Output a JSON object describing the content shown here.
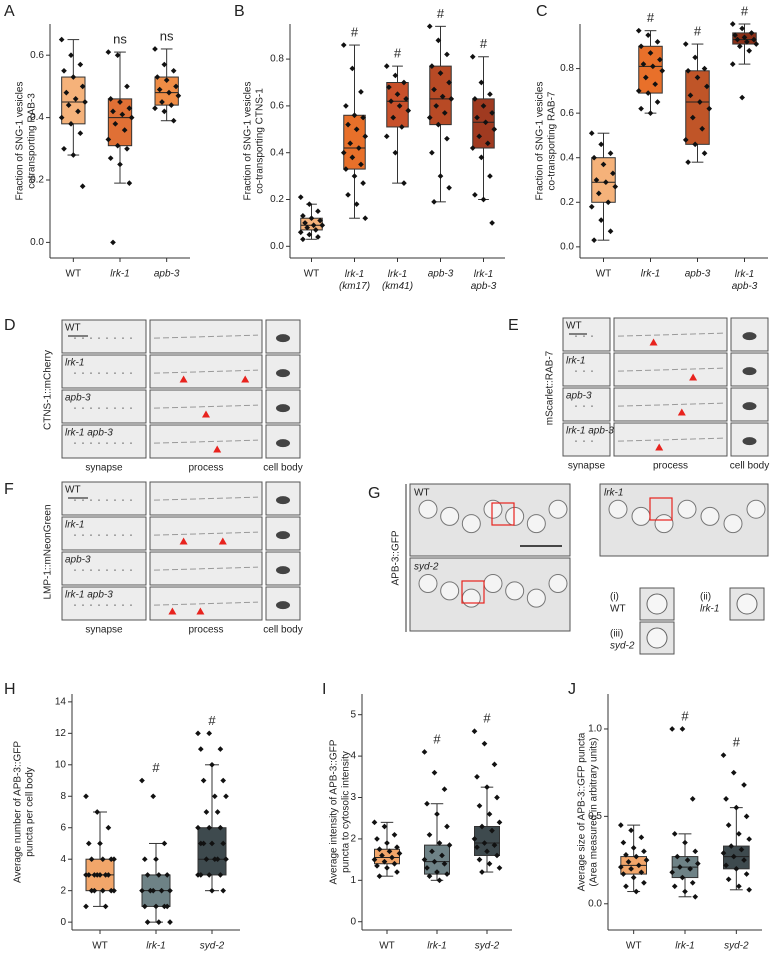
{
  "chart_data": [
    {
      "type": "box",
      "label": "A",
      "ylabel": [
        "Fraction of SNG-1 vesicles",
        "cotransporting RAB-3"
      ],
      "categories": [
        "WT",
        "lrk-1",
        "apb-3"
      ],
      "colors": [
        "#f5b27a",
        "#e07035",
        "#ef8c45"
      ],
      "annotations": [
        null,
        "ns",
        "ns"
      ],
      "boxes": [
        {
          "min": 0.28,
          "q1": 0.38,
          "median": 0.45,
          "q3": 0.53,
          "max": 0.65
        },
        {
          "min": 0.19,
          "q1": 0.31,
          "median": 0.4,
          "q3": 0.46,
          "max": 0.61
        },
        {
          "min": 0.39,
          "q1": 0.44,
          "median": 0.48,
          "q3": 0.53,
          "max": 0.62
        }
      ],
      "points": [
        [
          0.65,
          0.6,
          0.57,
          0.55,
          0.53,
          0.5,
          0.48,
          0.46,
          0.45,
          0.44,
          0.42,
          0.4,
          0.38,
          0.35,
          0.3,
          0.28,
          0.18
        ],
        [
          0.61,
          0.6,
          0.5,
          0.46,
          0.45,
          0.43,
          0.42,
          0.41,
          0.4,
          0.38,
          0.36,
          0.33,
          0.31,
          0.3,
          0.27,
          0.25,
          0.19,
          0.0
        ],
        [
          0.62,
          0.57,
          0.55,
          0.53,
          0.52,
          0.5,
          0.49,
          0.48,
          0.47,
          0.45,
          0.44,
          0.43,
          0.42,
          0.39
        ]
      ],
      "ylim": [
        -0.05,
        0.7
      ],
      "yticks": [
        {
          "value": 0,
          "label": "0.0"
        },
        0.2,
        0.4,
        0.6
      ]
    },
    {
      "type": "box",
      "label": "B",
      "ylabel": [
        "Fraction of SNG-1 vesicles",
        "co-transporting CTNS-1"
      ],
      "categories": [
        "WT",
        "lrk-1 (km17)",
        "lrk-1 (km41)",
        "apb-3",
        "lrk-1 apb-3"
      ],
      "colors": [
        "#f5b27a",
        "#e8702a",
        "#c8502a",
        "#b84a25",
        "#a03a20"
      ],
      "annotations": [
        null,
        "#",
        "#",
        "#",
        "#"
      ],
      "boxes": [
        {
          "min": 0.03,
          "q1": 0.07,
          "median": 0.09,
          "q3": 0.12,
          "max": 0.18
        },
        {
          "min": 0.12,
          "q1": 0.33,
          "median": 0.42,
          "q3": 0.56,
          "max": 0.86
        },
        {
          "min": 0.27,
          "q1": 0.51,
          "median": 0.62,
          "q3": 0.7,
          "max": 0.77
        },
        {
          "min": 0.19,
          "q1": 0.52,
          "median": 0.63,
          "q3": 0.77,
          "max": 0.94
        },
        {
          "min": 0.2,
          "q1": 0.42,
          "median": 0.53,
          "q3": 0.63,
          "max": 0.81
        }
      ],
      "points": [
        [
          0.21,
          0.18,
          0.15,
          0.13,
          0.12,
          0.11,
          0.1,
          0.09,
          0.09,
          0.08,
          0.07,
          0.06,
          0.05,
          0.04,
          0.03
        ],
        [
          0.86,
          0.76,
          0.66,
          0.6,
          0.56,
          0.55,
          0.52,
          0.5,
          0.47,
          0.44,
          0.42,
          0.4,
          0.38,
          0.35,
          0.33,
          0.3,
          0.27,
          0.22,
          0.18,
          0.12
        ],
        [
          0.77,
          0.73,
          0.7,
          0.68,
          0.65,
          0.63,
          0.62,
          0.6,
          0.58,
          0.55,
          0.51,
          0.47,
          0.4,
          0.27
        ],
        [
          0.94,
          0.88,
          0.82,
          0.77,
          0.74,
          0.7,
          0.67,
          0.64,
          0.63,
          0.6,
          0.57,
          0.55,
          0.52,
          0.46,
          0.4,
          0.3,
          0.25,
          0.19
        ],
        [
          0.81,
          0.7,
          0.65,
          0.63,
          0.6,
          0.57,
          0.55,
          0.53,
          0.5,
          0.47,
          0.44,
          0.42,
          0.38,
          0.3,
          0.22,
          0.2,
          0.1
        ]
      ],
      "ylim": [
        -0.05,
        0.95
      ],
      "yticks": [
        {
          "value": 0,
          "label": "0.0"
        },
        0.2,
        0.4,
        0.6,
        0.8
      ]
    },
    {
      "type": "box",
      "label": "C",
      "ylabel": [
        "Fraction of SNG-1 vesicles",
        "co-transporting RAB-7"
      ],
      "categories": [
        "WT",
        "lrk-1",
        "apb-3",
        "lrk-1 apb-3"
      ],
      "colors": [
        "#f5b27a",
        "#e8702a",
        "#c05528",
        "#8b3018"
      ],
      "annotations": [
        null,
        "#",
        "#",
        "#"
      ],
      "boxes": [
        {
          "min": 0.03,
          "q1": 0.2,
          "median": 0.29,
          "q3": 0.4,
          "max": 0.51
        },
        {
          "min": 0.6,
          "q1": 0.69,
          "median": 0.81,
          "q3": 0.9,
          "max": 0.97
        },
        {
          "min": 0.38,
          "q1": 0.46,
          "median": 0.65,
          "q3": 0.79,
          "max": 0.91
        },
        {
          "min": 0.82,
          "q1": 0.91,
          "median": 0.93,
          "q3": 0.96,
          "max": 1.0
        }
      ],
      "points": [
        [
          0.51,
          0.46,
          0.42,
          0.4,
          0.37,
          0.33,
          0.3,
          0.29,
          0.27,
          0.24,
          0.2,
          0.18,
          0.12,
          0.07,
          0.03
        ],
        [
          0.97,
          0.95,
          0.92,
          0.9,
          0.87,
          0.84,
          0.82,
          0.81,
          0.79,
          0.76,
          0.73,
          0.7,
          0.69,
          0.65,
          0.62,
          0.6
        ],
        [
          0.91,
          0.85,
          0.8,
          0.79,
          0.76,
          0.72,
          0.68,
          0.65,
          0.62,
          0.58,
          0.53,
          0.48,
          0.46,
          0.42,
          0.38
        ],
        [
          1.0,
          0.98,
          0.96,
          0.95,
          0.94,
          0.93,
          0.93,
          0.92,
          0.91,
          0.9,
          0.88,
          0.82,
          0.67
        ]
      ],
      "ylim": [
        -0.05,
        1.0
      ],
      "yticks": [
        {
          "value": 0,
          "label": "0.0"
        },
        0.2,
        0.4,
        0.6,
        0.8
      ]
    },
    {
      "type": "box",
      "label": "H",
      "ylabel": [
        "Average number of APB-3::GFP",
        "puncta per cell body"
      ],
      "categories": [
        "WT",
        "lrk-1",
        "syd-2"
      ],
      "colors": [
        "#f2a66a",
        "#6e8286",
        "#3e4a4e"
      ],
      "annotations": [
        null,
        "#",
        "#"
      ],
      "boxes": [
        {
          "min": 1,
          "q1": 2,
          "median": 3,
          "q3": 4,
          "max": 7
        },
        {
          "min": 0,
          "q1": 1,
          "median": 2,
          "q3": 3,
          "max": 5
        },
        {
          "min": 2,
          "q1": 3,
          "median": 4,
          "q3": 6,
          "max": 10
        }
      ],
      "points": [
        [
          8,
          7,
          6,
          5,
          5,
          4,
          4,
          4,
          4,
          3,
          3,
          3,
          3,
          3,
          3,
          3,
          2,
          2,
          2,
          2,
          2,
          1,
          1
        ],
        [
          9,
          8,
          5,
          4,
          4,
          3,
          3,
          3,
          2,
          2,
          2,
          2,
          2,
          1,
          1,
          1,
          1,
          0,
          0,
          0
        ],
        [
          12,
          12,
          11,
          11,
          10,
          9,
          9,
          8,
          8,
          7,
          7,
          6,
          6,
          6,
          5,
          5,
          5,
          5,
          4,
          4,
          4,
          4,
          3,
          3,
          3,
          3,
          2,
          2
        ]
      ],
      "ylim": [
        -0.5,
        14.5
      ],
      "yticks": [
        0,
        2,
        4,
        6,
        8,
        10,
        12,
        14
      ]
    },
    {
      "type": "box",
      "label": "I",
      "ylabel": [
        "Average intensity of APB-3::GFP",
        "puncta to cytosolic intensity"
      ],
      "categories": [
        "WT",
        "lrk-1",
        "syd-2"
      ],
      "colors": [
        "#f2a66a",
        "#6e8286",
        "#3e4a4e"
      ],
      "annotations": [
        null,
        "#",
        "#"
      ],
      "boxes": [
        {
          "min": 1.1,
          "q1": 1.4,
          "median": 1.55,
          "q3": 1.75,
          "max": 2.4
        },
        {
          "min": 1.0,
          "q1": 1.15,
          "median": 1.45,
          "q3": 1.85,
          "max": 2.85
        },
        {
          "min": 1.2,
          "q1": 1.6,
          "median": 1.9,
          "q3": 2.3,
          "max": 3.25
        }
      ],
      "points": [
        [
          2.4,
          2.3,
          2.1,
          2.0,
          1.9,
          1.8,
          1.75,
          1.7,
          1.65,
          1.6,
          1.55,
          1.5,
          1.45,
          1.4,
          1.35,
          1.3,
          1.2,
          1.1
        ],
        [
          4.1,
          3.6,
          3.2,
          2.85,
          2.6,
          2.3,
          2.1,
          1.9,
          1.85,
          1.7,
          1.6,
          1.5,
          1.45,
          1.4,
          1.3,
          1.2,
          1.15,
          1.1,
          1.0
        ],
        [
          4.6,
          4.3,
          3.8,
          3.5,
          3.25,
          3.0,
          2.8,
          2.6,
          2.4,
          2.3,
          2.2,
          2.0,
          1.9,
          1.85,
          1.8,
          1.7,
          1.6,
          1.5,
          1.4,
          1.3,
          1.2
        ]
      ],
      "ylim": [
        -0.2,
        5.5
      ],
      "yticks": [
        0,
        1,
        2,
        3,
        4,
        5
      ]
    },
    {
      "type": "box",
      "label": "J",
      "ylabel": [
        "Average size of APB-3::GFP puncta",
        "(Area measured in arbitrary units)"
      ],
      "categories": [
        "WT",
        "lrk-1",
        "syd-2"
      ],
      "colors": [
        "#f2a66a",
        "#6e8286",
        "#3e4a4e"
      ],
      "annotations": [
        null,
        "#",
        "#"
      ],
      "boxes": [
        {
          "min": 0.07,
          "q1": 0.17,
          "median": 0.22,
          "q3": 0.27,
          "max": 0.45
        },
        {
          "min": 0.04,
          "q1": 0.15,
          "median": 0.21,
          "q3": 0.27,
          "max": 0.4
        },
        {
          "min": 0.08,
          "q1": 0.2,
          "median": 0.27,
          "q3": 0.33,
          "max": 0.55
        }
      ],
      "points": [
        [
          0.45,
          0.42,
          0.38,
          0.35,
          0.32,
          0.3,
          0.28,
          0.27,
          0.25,
          0.24,
          0.22,
          0.21,
          0.2,
          0.18,
          0.17,
          0.15,
          0.12,
          0.1,
          0.07
        ],
        [
          1.0,
          1.0,
          0.6,
          0.4,
          0.35,
          0.3,
          0.27,
          0.25,
          0.23,
          0.21,
          0.2,
          0.18,
          0.15,
          0.12,
          0.1,
          0.07,
          0.04
        ],
        [
          0.85,
          0.75,
          0.68,
          0.6,
          0.55,
          0.5,
          0.45,
          0.4,
          0.37,
          0.33,
          0.31,
          0.29,
          0.27,
          0.25,
          0.22,
          0.2,
          0.17,
          0.14,
          0.1,
          0.08
        ]
      ],
      "ylim": [
        -0.15,
        1.2
      ],
      "yticks": [
        {
          "value": 0,
          "label": "0.0"
        },
        0.5,
        {
          "value": 1,
          "label": "1.0"
        }
      ]
    }
  ],
  "image_panels": [
    {
      "label": "D",
      "channel": "CTNS-1::mCherry",
      "rows": [
        "WT",
        "lrk-1",
        "apb-3",
        "lrk-1 apb-3"
      ],
      "columns": [
        "synapse",
        "process",
        "cell body"
      ]
    },
    {
      "label": "E",
      "channel": "mScarlet::RAB-7",
      "rows": [
        "WT",
        "lrk-1",
        "apb-3",
        "lrk-1 apb-3"
      ],
      "columns": [
        "synapse",
        "process",
        "cell body"
      ]
    },
    {
      "label": "F",
      "channel": "LMP-1::mNeonGreen",
      "rows": [
        "WT",
        "lrk-1",
        "apb-3",
        "lrk-1 apb-3"
      ],
      "columns": [
        "synapse",
        "process",
        "cell body"
      ]
    }
  ],
  "micrograph": {
    "label": "G",
    "channel": "APB-3::GFP",
    "images": [
      "WT",
      "syd-2",
      "lrk-1"
    ],
    "insets": [
      {
        "index": "(i)",
        "name": "WT"
      },
      {
        "index": "(ii)",
        "name": "lrk-1"
      },
      {
        "index": "(iii)",
        "name": "syd-2"
      }
    ]
  }
}
